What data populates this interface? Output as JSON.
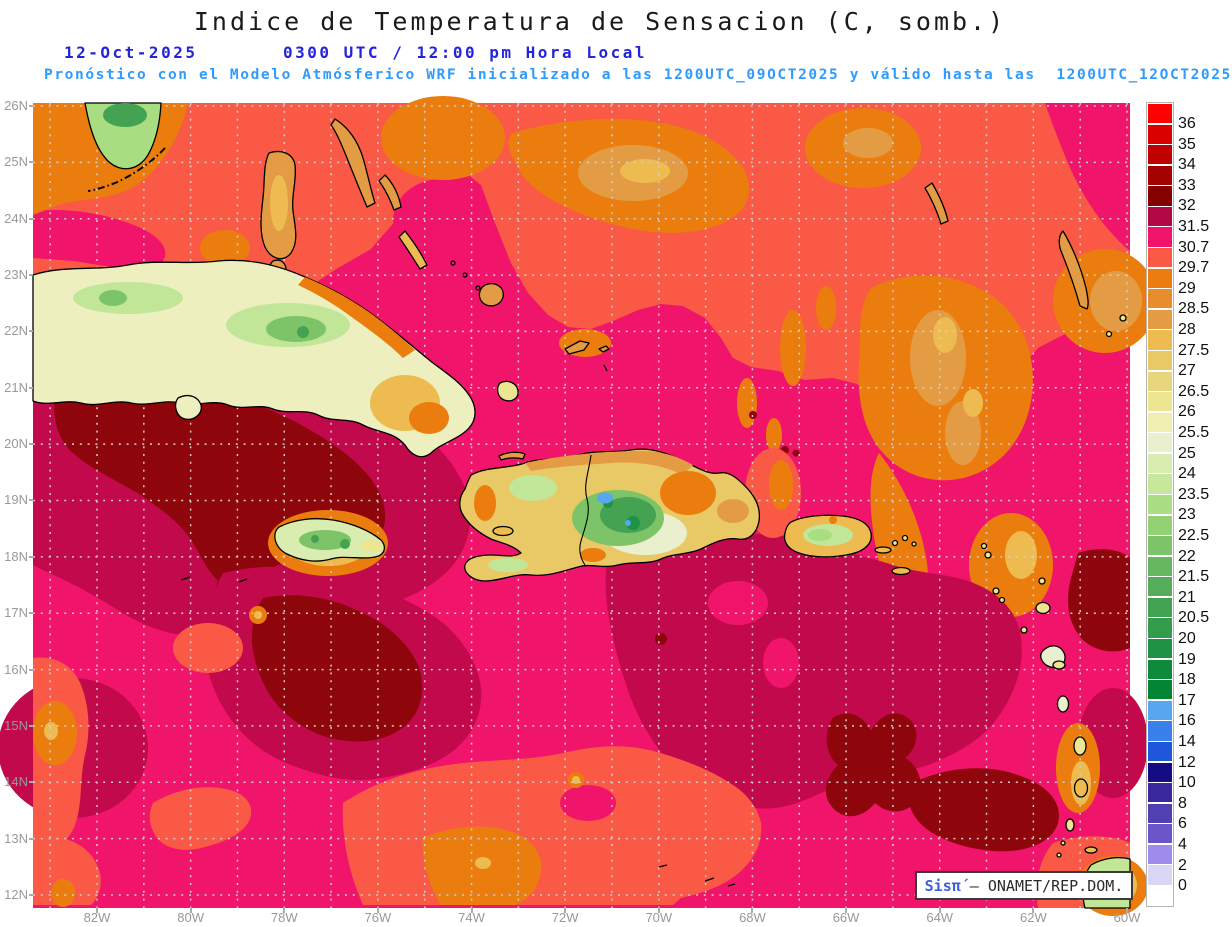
{
  "header": {
    "title": "Indice de Temperatura de Sensacion (C, somb.)",
    "date": "12-Oct-2025",
    "time": "0300 UTC / 12:00 pm Hora Local",
    "forecast": "Pronóstico con el Modelo Atmósferico WRF inicializado a las 1200UTC_09OCT2025 y válido hasta las  1200UTC_12OCT2025"
  },
  "colors": {
    "title": "#1a1a1a",
    "datetime_text": "#2424DC",
    "forecast_text": "#2E9BFF",
    "axis_labels": "#999999",
    "grid_dots": "#d0d0d0",
    "sea_magenta": "#F1146B",
    "sea_coral": "#FA5A45",
    "sea_orange": "#EB7D0E",
    "sea_crimson": "#C1094B",
    "sea_maroon": "#8E050B",
    "attribution_brand": "#3D5FDE",
    "attribution_text": "#2b2b2b"
  },
  "map": {
    "lat_labels": [
      "26N",
      "25N",
      "24N",
      "23N",
      "22N",
      "21N",
      "20N",
      "19N",
      "18N",
      "17N",
      "16N",
      "15N",
      "14N",
      "13N",
      "12N"
    ],
    "lon_labels": [
      "82W",
      "80W",
      "78W",
      "76W",
      "74W",
      "72W",
      "70W",
      "68W",
      "66W",
      "64W",
      "62W",
      "60W"
    ]
  },
  "legend": {
    "labels": [
      "36",
      "35",
      "34",
      "33",
      "32",
      "31.5",
      "30.7",
      "29.7",
      "29",
      "28.5",
      "28",
      "27.5",
      "27",
      "26.5",
      "26",
      "25.5",
      "25",
      "24",
      "23.5",
      "23",
      "22.5",
      "22",
      "21.5",
      "21",
      "20.5",
      "20",
      "19",
      "18",
      "17",
      "16",
      "14",
      "12",
      "10",
      "8",
      "6",
      "4",
      "2",
      "0"
    ],
    "colors": [
      "#FE0000",
      "#DB0000",
      "#C10000",
      "#A30000",
      "#850001",
      "#B40845",
      "#F1146B",
      "#FA5A45",
      "#EB7D0E",
      "#E88D2C",
      "#E49C44",
      "#EEBB50",
      "#E9C966",
      "#E7D67D",
      "#ECE592",
      "#F0EEB1",
      "#EAF0CD",
      "#D8EDAF",
      "#C6E89C",
      "#AADD84",
      "#93D274",
      "#7CC467",
      "#67B760",
      "#55AC5A",
      "#44A353",
      "#339B4C",
      "#209245",
      "#0F8A3D",
      "#048536",
      "#58A5F0",
      "#3A80EC",
      "#1F56DC",
      "#150C85",
      "#39289E",
      "#5140B2",
      "#6C55C8",
      "#9F8BEC",
      "#D9D6F6",
      "#FFFFFF"
    ]
  },
  "attribution": {
    "brand": "Sisπ́",
    "org": " – ONAMET/REP.DOM."
  }
}
